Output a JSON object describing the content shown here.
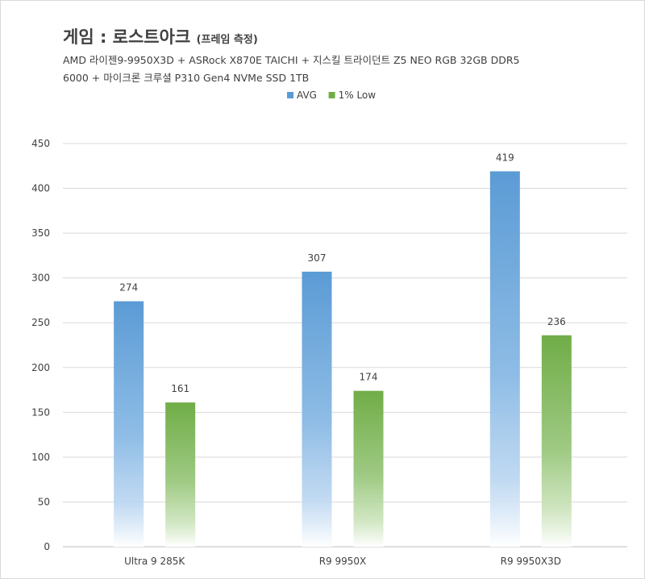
{
  "title": {
    "main": "게임 : 로스트아크",
    "sub": "(프레임 측정)"
  },
  "subtitle": "AMD 라이젠9-9950X3D + ASRock X870E TAICHI + 지스킬 트라이던트 Z5 NEO RGB 32GB DDR5\n6000 + 마이크론 크루셜 P310 Gen4 NVMe SSD 1TB",
  "colors": {
    "avg": "#5b9bd5",
    "low": "#70ad47",
    "grid": "#d9d9d9",
    "text": "#404040"
  },
  "chart_data": {
    "type": "bar",
    "categories": [
      "Ultra 9 285K",
      "R9 9950X",
      "R9 9950X3D"
    ],
    "series": [
      {
        "name": "AVG",
        "values": [
          274,
          307,
          419
        ]
      },
      {
        "name": "1% Low",
        "values": [
          161,
          174,
          236
        ]
      }
    ],
    "ylim": [
      0,
      450
    ],
    "yticks": [
      0,
      50,
      100,
      150,
      200,
      250,
      300,
      350,
      400,
      450
    ],
    "legend": "top",
    "grid": true,
    "data_labels": true
  }
}
